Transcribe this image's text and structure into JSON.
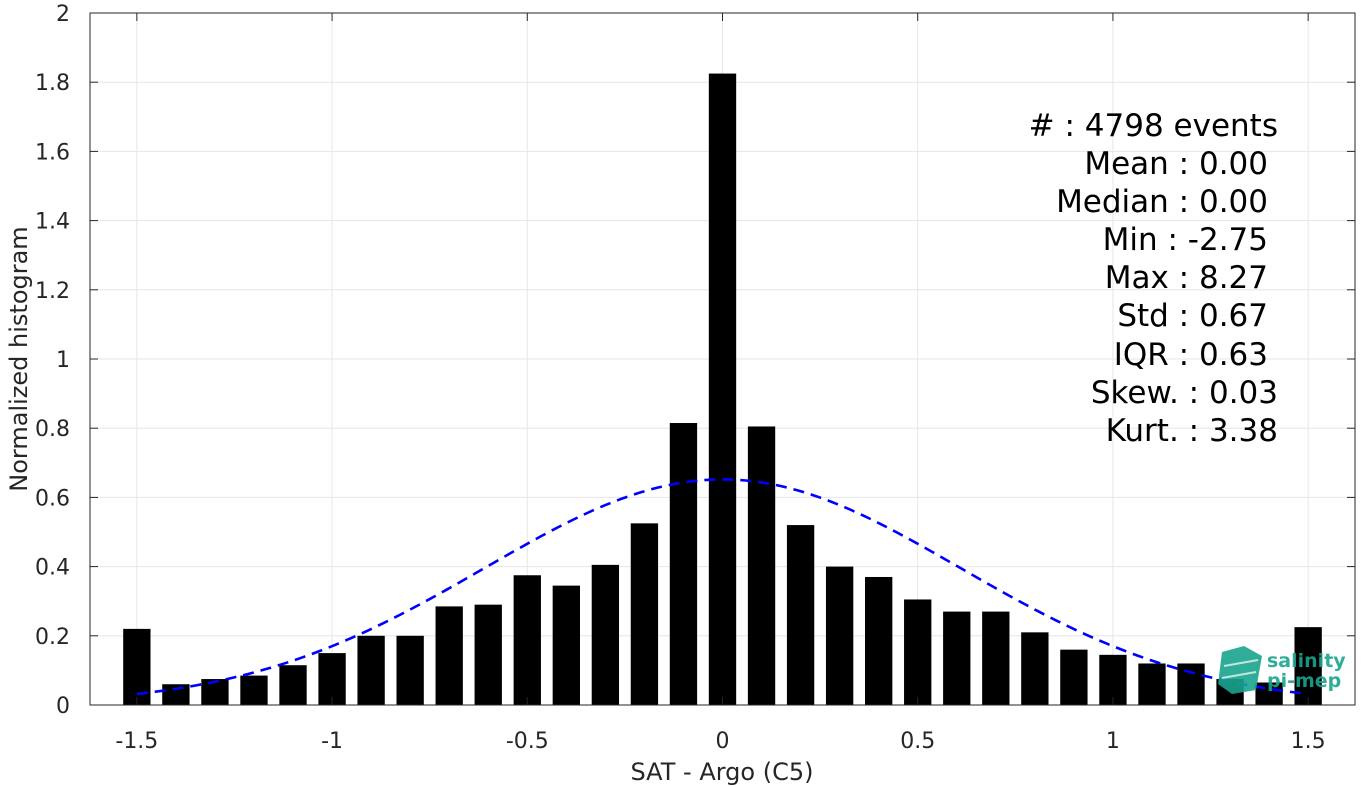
{
  "chart_data": {
    "type": "bar",
    "xlabel": "SAT - Argo (C5)",
    "ylabel": "Normalized histogram",
    "xlim": [
      -1.62,
      1.62
    ],
    "ylim": [
      0,
      2
    ],
    "grid": true,
    "x_ticks": [
      -1.5,
      -1,
      -0.5,
      0,
      0.5,
      1,
      1.5
    ],
    "x_tick_labels": [
      "-1.5",
      "-1",
      "-0.5",
      "0",
      "0.5",
      "1",
      "1.5"
    ],
    "y_ticks": [
      0,
      0.2,
      0.4,
      0.6,
      0.8,
      1,
      1.2,
      1.4,
      1.6,
      1.8,
      2
    ],
    "y_tick_labels": [
      "0",
      "0.2",
      "0.4",
      "0.6",
      "0.8",
      "1",
      "1.2",
      "1.4",
      "1.6",
      "1.8",
      "2"
    ],
    "bar_width": 0.07,
    "bars": {
      "x": [
        -1.5,
        -1.4,
        -1.3,
        -1.2,
        -1.1,
        -1.0,
        -0.9,
        -0.8,
        -0.7,
        -0.6,
        -0.5,
        -0.4,
        -0.3,
        -0.2,
        -0.1,
        0.0,
        0.1,
        0.2,
        0.3,
        0.4,
        0.5,
        0.6,
        0.7,
        0.8,
        0.9,
        1.0,
        1.1,
        1.2,
        1.3,
        1.4,
        1.5
      ],
      "values": [
        0.22,
        0.06,
        0.075,
        0.085,
        0.115,
        0.15,
        0.2,
        0.2,
        0.285,
        0.29,
        0.375,
        0.345,
        0.405,
        0.525,
        0.815,
        1.825,
        0.805,
        0.52,
        0.4,
        0.37,
        0.305,
        0.27,
        0.27,
        0.21,
        0.16,
        0.145,
        0.12,
        0.12,
        0.075,
        0.065,
        0.225
      ],
      "color": "#000000"
    },
    "fit_curve": {
      "style": "dashed",
      "color": "#0000ff",
      "mean": 0.0,
      "std": 0.61,
      "peak": 0.652,
      "x_range": [
        -1.5,
        1.5
      ]
    },
    "annotation_lines": [
      "#  : 4798 events",
      "Mean : 0.00",
      "Median : 0.00",
      "Min : -2.75",
      "Max : 8.27",
      "Std : 0.67",
      "IQR : 0.63",
      "Skew. : 0.03",
      "Kurt. : 3.38"
    ]
  },
  "logo": {
    "line1": "salinity",
    "line2": "pi-mep",
    "color": "#1aa58e"
  }
}
